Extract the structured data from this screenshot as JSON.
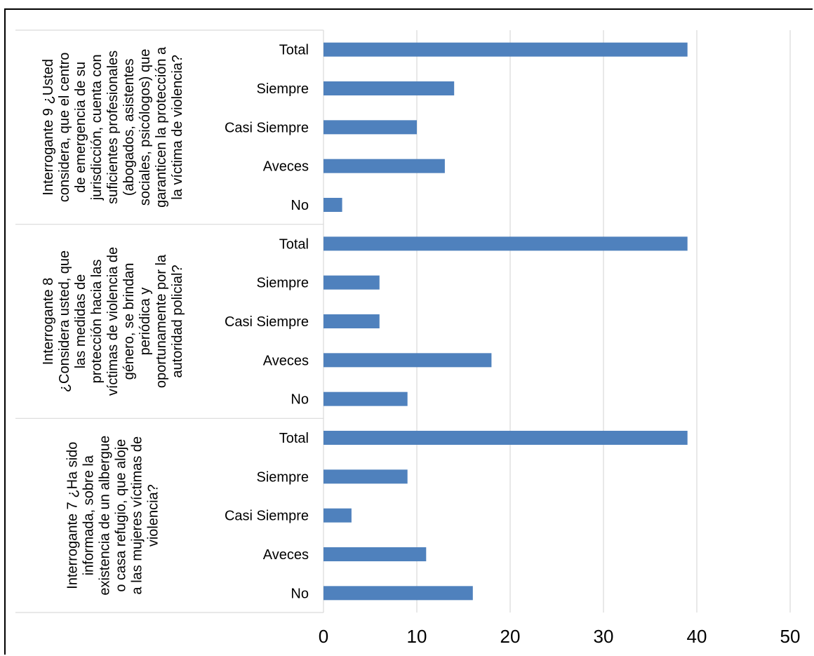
{
  "chart_data": {
    "type": "bar",
    "orientation": "horizontal",
    "bar_color": "#4f81bd",
    "xlim": [
      0,
      50
    ],
    "x_ticks": [
      "0",
      "10",
      "20",
      "30",
      "40",
      "50"
    ],
    "grid": true,
    "groups": [
      {
        "label_lines": [
          "Interrogante 9 ¿Usted",
          "considera, que el centro",
          "de emergencia de su",
          "jurisdicción, cuenta con",
          "suficientes profesionales",
          "(abogados, asistentes",
          "sociales, psicólogos) que",
          "garanticen la protección a",
          "la víctima de violencia?"
        ],
        "categories": [
          "Total",
          "Siempre",
          "Casi Siempre",
          "Aveces",
          "No"
        ],
        "values": [
          39,
          14,
          10,
          13,
          2
        ]
      },
      {
        "label_lines": [
          "Interrogante 8",
          "¿Considera usted, que",
          "las medidas de",
          "protección hacia las",
          "víctimas de violencia de",
          "género, se brindan",
          "periódica y",
          "oportunamente por la",
          "autoridad policial?"
        ],
        "categories": [
          "Total",
          "Siempre",
          "Casi Siempre",
          "Aveces",
          "No"
        ],
        "values": [
          39,
          6,
          6,
          18,
          9
        ]
      },
      {
        "label_lines": [
          "Interrogante 7 ¿Ha sido",
          "informada, sobre la",
          "existencia de un albergue",
          "o casa refugio, que aloje",
          "a las mujeres víctimas de",
          "violencia?"
        ],
        "categories": [
          "Total",
          "Siempre",
          "Casi Siempre",
          "Aveces",
          "No"
        ],
        "values": [
          39,
          9,
          3,
          11,
          16
        ]
      }
    ]
  }
}
